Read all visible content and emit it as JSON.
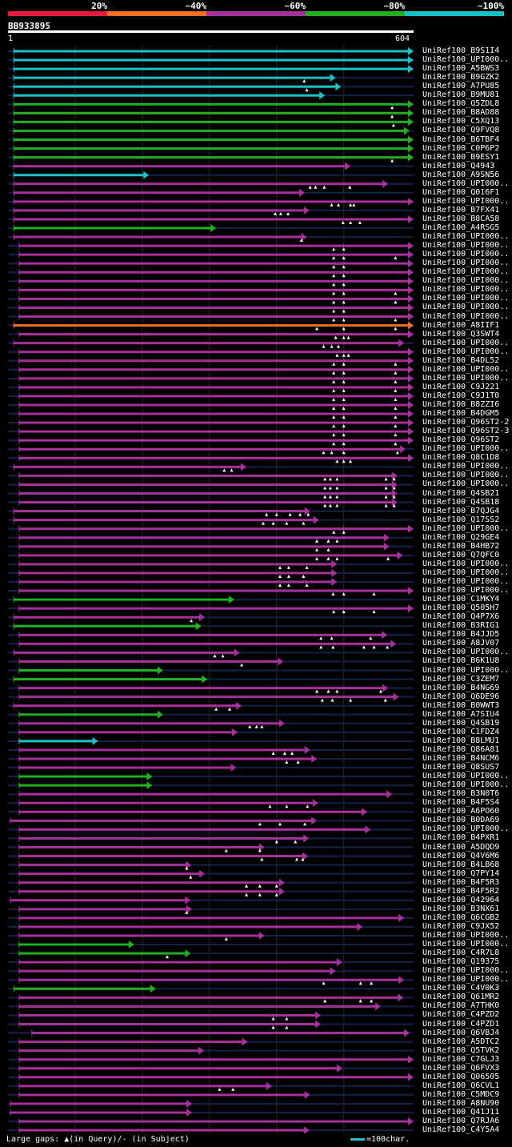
{
  "legend": {
    "labels": [
      "20%",
      "~40%",
      "~60%",
      "~80%",
      "~100%"
    ],
    "colors": [
      "#e8193a",
      "#f06f20",
      "#a8309e",
      "#20b020",
      "#19c1c8"
    ]
  },
  "query": {
    "id": "BB933895",
    "start": "1",
    "end": "604",
    "length": 604
  },
  "footer": {
    "text": "Large gaps: ▲(in Query)/- (in Subject)",
    "scale": "=100char."
  },
  "hits": [
    {
      "label": "UniRef100_B9S1I4",
      "c": 4,
      "s": 8,
      "e": 604,
      "m": []
    },
    {
      "label": "UniRef100_UPI000..",
      "c": 4,
      "s": 8,
      "e": 604,
      "m": []
    },
    {
      "label": "UniRef100_A5BWS3",
      "c": 4,
      "s": 8,
      "e": 604,
      "m": []
    },
    {
      "label": "UniRef100_B9GZK2",
      "c": 4,
      "s": 8,
      "e": 488,
      "m": [
        441
      ]
    },
    {
      "label": "UniRef100_A7PU85",
      "c": 4,
      "s": 8,
      "e": 496,
      "m": [
        445
      ]
    },
    {
      "label": "UniRef100_B9MU81",
      "c": 4,
      "s": 8,
      "e": 472,
      "m": []
    },
    {
      "label": "UniRef100_Q5ZDL8",
      "c": 3,
      "s": 8,
      "e": 604,
      "m": [
        572
      ]
    },
    {
      "label": "UniRef100_B8AD88",
      "c": 3,
      "s": 8,
      "e": 604,
      "m": [
        572
      ]
    },
    {
      "label": "UniRef100_C5XQ13",
      "c": 3,
      "s": 8,
      "e": 604,
      "m": [
        574
      ]
    },
    {
      "label": "UniRef100_Q9FVQ8",
      "c": 3,
      "s": 8,
      "e": 598,
      "m": []
    },
    {
      "label": "UniRef100_B6TBF4",
      "c": 3,
      "s": 8,
      "e": 604,
      "m": []
    },
    {
      "label": "UniRef100_C0P6P2",
      "c": 3,
      "s": 8,
      "e": 604,
      "m": []
    },
    {
      "label": "UniRef100_B9ESY1",
      "c": 3,
      "s": 8,
      "e": 604,
      "m": [
        572
      ]
    },
    {
      "label": "UniRef100_Q4943",
      "c": 2,
      "s": 8,
      "e": 510,
      "m": []
    },
    {
      "label": "UniRef100_A9SN56",
      "c": 4,
      "s": 8,
      "e": 210,
      "m": []
    },
    {
      "label": "UniRef100_UPI000..",
      "c": 2,
      "s": 8,
      "e": 566,
      "m": [
        450,
        458,
        471,
        509
      ]
    },
    {
      "label": "UniRef100_Q016F1",
      "c": 2,
      "s": 8,
      "e": 442,
      "m": []
    },
    {
      "label": "UniRef100_UPI000..",
      "c": 2,
      "s": 8,
      "e": 604,
      "m": [
        482,
        492,
        510,
        515
      ]
    },
    {
      "label": "UniRef100_B7FX41",
      "c": 2,
      "s": 8,
      "e": 449,
      "m": [
        398,
        406,
        417
      ]
    },
    {
      "label": "UniRef100_B8CA58",
      "c": 2,
      "s": 8,
      "e": 604,
      "m": [
        499,
        510,
        524
      ]
    },
    {
      "label": "UniRef100_A4RSG5",
      "c": 3,
      "s": 8,
      "e": 310,
      "m": []
    },
    {
      "label": "UniRef100_UPI000..",
      "c": 2,
      "s": 8,
      "e": 445,
      "m": [
        437
      ]
    },
    {
      "label": "UniRef100_UPI000..",
      "c": 2,
      "s": 16,
      "e": 604,
      "m": [
        485,
        500
      ]
    },
    {
      "label": "UniRef100_UPI000..",
      "c": 2,
      "s": 16,
      "e": 604,
      "m": [
        485,
        500,
        577
      ]
    },
    {
      "label": "UniRef100_UPI000..",
      "c": 2,
      "s": 16,
      "e": 604,
      "m": [
        485,
        500
      ]
    },
    {
      "label": "UniRef100_UPI000..",
      "c": 2,
      "s": 16,
      "e": 604,
      "m": [
        485,
        500
      ]
    },
    {
      "label": "UniRef100_UPI000..",
      "c": 2,
      "s": 16,
      "e": 604,
      "m": [
        485,
        500
      ]
    },
    {
      "label": "UniRef100_UPI000..",
      "c": 2,
      "s": 16,
      "e": 604,
      "m": [
        485,
        500,
        577
      ]
    },
    {
      "label": "UniRef100_UPI000..",
      "c": 2,
      "s": 16,
      "e": 604,
      "m": [
        485,
        500,
        577
      ]
    },
    {
      "label": "UniRef100_UPI000..",
      "c": 2,
      "s": 16,
      "e": 604,
      "m": [
        485,
        500
      ]
    },
    {
      "label": "UniRef100_UPI000..",
      "c": 2,
      "s": 16,
      "e": 604,
      "m": [
        485,
        500,
        577
      ]
    },
    {
      "label": "UniRef100_A8IIF1",
      "c": 1,
      "s": 8,
      "e": 604,
      "m": [
        460,
        500,
        577
      ]
    },
    {
      "label": "UniRef100_Q3SWT4",
      "c": 2,
      "s": 16,
      "e": 604,
      "m": [
        488,
        500,
        507
      ]
    },
    {
      "label": "UniRef100_UPI000..",
      "c": 2,
      "s": 8,
      "e": 590,
      "m": [
        470,
        482,
        492
      ]
    },
    {
      "label": "UniRef100_UPI000..",
      "c": 2,
      "s": 16,
      "e": 604,
      "m": [
        490,
        500,
        507
      ]
    },
    {
      "label": "UniRef100_B4DL52",
      "c": 2,
      "s": 16,
      "e": 604,
      "m": [
        485,
        500,
        577
      ]
    },
    {
      "label": "UniRef100_UPI000..",
      "c": 2,
      "s": 16,
      "e": 604,
      "m": [
        485,
        500,
        577
      ]
    },
    {
      "label": "UniRef100_UPI000..",
      "c": 2,
      "s": 16,
      "e": 604,
      "m": [
        485,
        500,
        577
      ]
    },
    {
      "label": "UniRef100_C9J221",
      "c": 2,
      "s": 16,
      "e": 604,
      "m": [
        485,
        500,
        577
      ]
    },
    {
      "label": "UniRef100_C9J1T0",
      "c": 2,
      "s": 16,
      "e": 604,
      "m": [
        485,
        500,
        577
      ]
    },
    {
      "label": "UniRef100_B8ZZI6",
      "c": 2,
      "s": 16,
      "e": 604,
      "m": [
        485,
        500,
        577
      ]
    },
    {
      "label": "UniRef100_B4DGM5",
      "c": 2,
      "s": 16,
      "e": 604,
      "m": [
        485,
        500,
        577
      ]
    },
    {
      "label": "UniRef100_Q96ST2-2",
      "c": 2,
      "s": 16,
      "e": 604,
      "m": [
        485,
        500,
        577
      ]
    },
    {
      "label": "UniRef100_Q96ST2-3",
      "c": 2,
      "s": 16,
      "e": 604,
      "m": [
        485,
        500,
        577
      ]
    },
    {
      "label": "UniRef100_Q96ST2",
      "c": 2,
      "s": 16,
      "e": 604,
      "m": [
        485,
        500,
        577
      ]
    },
    {
      "label": "UniRef100_UPI000..",
      "c": 2,
      "s": 16,
      "e": 592,
      "m": [
        470,
        482,
        500,
        580
      ]
    },
    {
      "label": "UniRef100_Q8C1D8",
      "c": 2,
      "s": 16,
      "e": 604,
      "m": [
        490,
        500,
        510
      ]
    },
    {
      "label": "UniRef100_UPI000..",
      "c": 2,
      "s": 8,
      "e": 355,
      "m": [
        322,
        333
      ]
    },
    {
      "label": "UniRef100_UPI000..",
      "c": 2,
      "s": 16,
      "e": 580,
      "m": [
        472,
        480,
        490,
        563,
        575
      ]
    },
    {
      "label": "UniRef100_UPI000..",
      "c": 2,
      "s": 16,
      "e": 580,
      "m": [
        472,
        480,
        490,
        563,
        575
      ]
    },
    {
      "label": "UniRef100_Q4SB21",
      "c": 2,
      "s": 16,
      "e": 580,
      "m": [
        472,
        480,
        490,
        563,
        575
      ]
    },
    {
      "label": "UniRef100_Q4SB18",
      "c": 2,
      "s": 16,
      "e": 580,
      "m": [
        472,
        480,
        490,
        563,
        575
      ]
    },
    {
      "label": "UniRef100_B7QJG4",
      "c": 2,
      "s": 8,
      "e": 450,
      "m": [
        385,
        400,
        420,
        435,
        447
      ]
    },
    {
      "label": "UniRef100_Q17SS2",
      "c": 2,
      "s": 8,
      "e": 463,
      "m": [
        380,
        395,
        415,
        440
      ]
    },
    {
      "label": "UniRef100_UPI000..",
      "c": 2,
      "s": 16,
      "e": 604,
      "m": [
        485,
        500
      ]
    },
    {
      "label": "UniRef100_Q29GE4",
      "c": 2,
      "s": 16,
      "e": 568,
      "m": [
        460,
        477,
        490
      ]
    },
    {
      "label": "UniRef100_B4HB72",
      "c": 2,
      "s": 16,
      "e": 568,
      "m": [
        460,
        477
      ]
    },
    {
      "label": "UniRef100_Q7QFC0",
      "c": 2,
      "s": 16,
      "e": 588,
      "m": [
        460,
        477,
        490,
        566
      ]
    },
    {
      "label": "UniRef100_UPI000..",
      "c": 2,
      "s": 16,
      "e": 490,
      "m": [
        405,
        418,
        445
      ]
    },
    {
      "label": "UniRef100_UPI000..",
      "c": 2,
      "s": 16,
      "e": 490,
      "m": [
        405,
        418,
        440
      ]
    },
    {
      "label": "UniRef100_UPI000..",
      "c": 2,
      "s": 16,
      "e": 490,
      "m": [
        405,
        418,
        445
      ]
    },
    {
      "label": "UniRef100_UPI000..",
      "c": 2,
      "s": 16,
      "e": 604,
      "m": [
        484,
        500,
        545
      ]
    },
    {
      "label": "UniRef100_C1MKY4",
      "c": 3,
      "s": 8,
      "e": 337,
      "m": []
    },
    {
      "label": "UniRef100_Q505H7",
      "c": 2,
      "s": 16,
      "e": 604,
      "m": [
        485,
        500,
        545
      ]
    },
    {
      "label": "UniRef100_Q4P7X6",
      "c": 2,
      "s": 8,
      "e": 293,
      "m": [
        273
      ]
    },
    {
      "label": "UniRef100_B3RIG1",
      "c": 3,
      "s": 8,
      "e": 288,
      "m": []
    },
    {
      "label": "UniRef100_B4JJD5",
      "c": 2,
      "s": 16,
      "e": 565,
      "m": [
        466,
        482,
        540
      ]
    },
    {
      "label": "UniRef100_A8JV07",
      "c": 2,
      "s": 16,
      "e": 578,
      "m": [
        466,
        484,
        530,
        545,
        565
      ]
    },
    {
      "label": "UniRef100_UPI000..",
      "c": 2,
      "s": 8,
      "e": 345,
      "m": [
        308,
        320
      ]
    },
    {
      "label": "UniRef100_B6K1U8",
      "c": 2,
      "s": 16,
      "e": 410,
      "m": [
        348
      ]
    },
    {
      "label": "UniRef100_UPI000..",
      "c": 3,
      "s": 16,
      "e": 231,
      "m": []
    },
    {
      "label": "UniRef100_C3ZEM7",
      "c": 3,
      "s": 8,
      "e": 297,
      "m": []
    },
    {
      "label": "UniRef100_B4NG69",
      "c": 2,
      "s": 16,
      "e": 566,
      "m": [
        460,
        477,
        490,
        555
      ]
    },
    {
      "label": "UniRef100_Q6DE96",
      "c": 2,
      "s": 16,
      "e": 582,
      "m": [
        468,
        483,
        510,
        562
      ]
    },
    {
      "label": "UniRef100_B0WWT3",
      "c": 2,
      "s": 8,
      "e": 348,
      "m": [
        310,
        330
      ]
    },
    {
      "label": "UniRef100_A7SIU4",
      "c": 3,
      "s": 16,
      "e": 231,
      "m": []
    },
    {
      "label": "UniRef100_Q4SB19",
      "c": 2,
      "s": 16,
      "e": 412,
      "m": [
        360,
        370,
        378
      ]
    },
    {
      "label": "UniRef100_C1FDZ4",
      "c": 2,
      "s": 16,
      "e": 342,
      "m": []
    },
    {
      "label": "UniRef100_B8LMU1",
      "c": 4,
      "s": 16,
      "e": 134,
      "m": []
    },
    {
      "label": "UniRef100_Q86A81",
      "c": 2,
      "s": 16,
      "e": 450,
      "m": [
        395,
        412,
        423
      ]
    },
    {
      "label": "UniRef100_B4NCM6",
      "c": 2,
      "s": 16,
      "e": 460,
      "m": [
        415,
        432
      ]
    },
    {
      "label": "UniRef100_Q8SUS7",
      "c": 2,
      "s": 16,
      "e": 340,
      "m": []
    },
    {
      "label": "UniRef100_UPI000..",
      "c": 3,
      "s": 16,
      "e": 215,
      "m": []
    },
    {
      "label": "UniRef100_UPI000..",
      "c": 3,
      "s": 16,
      "e": 215,
      "m": []
    },
    {
      "label": "UniRef100_B3N0T6",
      "c": 2,
      "s": 16,
      "e": 572,
      "m": []
    },
    {
      "label": "UniRef100_B4F5S4",
      "c": 2,
      "s": 16,
      "e": 462,
      "m": [
        390,
        415,
        446
      ]
    },
    {
      "label": "UniRef100_A6PO60",
      "c": 2,
      "s": 16,
      "e": 535,
      "m": []
    },
    {
      "label": "UniRef100_B0DA69",
      "c": 2,
      "s": 3,
      "e": 460,
      "m": [
        375,
        405,
        442
      ]
    },
    {
      "label": "UniRef100_UPI000..",
      "c": 2,
      "s": 16,
      "e": 540,
      "m": []
    },
    {
      "label": "UniRef100_B4PXR1",
      "c": 2,
      "s": 16,
      "e": 448,
      "m": [
        400,
        428
      ]
    },
    {
      "label": "UniRef100_A5DQD9",
      "c": 2,
      "s": 16,
      "e": 382,
      "m": [
        325,
        375
      ]
    },
    {
      "label": "UniRef100_Q4V6M6",
      "c": 2,
      "s": 16,
      "e": 447,
      "m": [
        378,
        430,
        439
      ]
    },
    {
      "label": "UniRef100_B4LB68",
      "c": 2,
      "s": 16,
      "e": 273,
      "m": [
        266
      ]
    },
    {
      "label": "UniRef100_Q7PY14",
      "c": 2,
      "s": 16,
      "e": 293,
      "m": [
        272
      ]
    },
    {
      "label": "UniRef100_B4F5R3",
      "c": 2,
      "s": 16,
      "e": 412,
      "m": [
        355,
        375,
        400
      ]
    },
    {
      "label": "UniRef100_B4F5R2",
      "c": 2,
      "s": 16,
      "e": 412,
      "m": [
        355,
        375,
        400
      ]
    },
    {
      "label": "UniRef100_Q42964",
      "c": 2,
      "s": 3,
      "e": 272,
      "m": []
    },
    {
      "label": "UniRef100_B3NX61",
      "c": 2,
      "s": 16,
      "e": 274,
      "m": [
        266
      ]
    },
    {
      "label": "UniRef100_Q6CGB2",
      "c": 2,
      "s": 16,
      "e": 590,
      "m": []
    },
    {
      "label": "UniRef100_C9JX52",
      "c": 2,
      "s": 16,
      "e": 528,
      "m": []
    },
    {
      "label": "UniRef100_UPI000..",
      "c": 2,
      "s": 16,
      "e": 382,
      "m": [
        325
      ]
    },
    {
      "label": "UniRef100_UPI000..",
      "c": 3,
      "s": 16,
      "e": 188,
      "m": []
    },
    {
      "label": "UniRef100_C4R7L8",
      "c": 3,
      "s": 16,
      "e": 272,
      "m": [
        237
      ]
    },
    {
      "label": "UniRef100_Q19375",
      "c": 2,
      "s": 16,
      "e": 498,
      "m": []
    },
    {
      "label": "UniRef100_UPI000..",
      "c": 2,
      "s": 16,
      "e": 488,
      "m": []
    },
    {
      "label": "UniRef100_UPI000..",
      "c": 2,
      "s": 16,
      "e": 590,
      "m": [
        470,
        525,
        541
      ]
    },
    {
      "label": "UniRef100_C4V0K3",
      "c": 3,
      "s": 8,
      "e": 220,
      "m": []
    },
    {
      "label": "UniRef100_Q61MR2",
      "c": 2,
      "s": 16,
      "e": 589,
      "m": [
        472,
        525,
        541
      ]
    },
    {
      "label": "UniRef100_A7THK0",
      "c": 2,
      "s": 16,
      "e": 555,
      "m": []
    },
    {
      "label": "UniRef100_C4PZD2",
      "c": 2,
      "s": 16,
      "e": 466,
      "m": [
        395,
        415
      ]
    },
    {
      "label": "UniRef100_C4PZD1",
      "c": 2,
      "s": 16,
      "e": 466,
      "m": [
        395,
        415
      ]
    },
    {
      "label": "UniRef100_Q6VBJ4",
      "c": 2,
      "s": 35,
      "e": 598,
      "m": []
    },
    {
      "label": "UniRef100_A5DTC2",
      "c": 2,
      "s": 16,
      "e": 357,
      "m": []
    },
    {
      "label": "UniRef100_Q5TVK2",
      "c": 2,
      "s": 16,
      "e": 292,
      "m": []
    },
    {
      "label": "UniRef100_C7GLJ3",
      "c": 2,
      "s": 16,
      "e": 604,
      "m": []
    },
    {
      "label": "UniRef100_Q6FVX3",
      "c": 2,
      "s": 16,
      "e": 498,
      "m": []
    },
    {
      "label": "UniRef100_Q06505",
      "c": 2,
      "s": 16,
      "e": 604,
      "m": []
    },
    {
      "label": "UniRef100_Q6CVL1",
      "c": 2,
      "s": 16,
      "e": 393,
      "m": [
        315,
        335
      ]
    },
    {
      "label": "UniRef100_C5MDC9",
      "c": 2,
      "s": 16,
      "e": 450,
      "m": []
    },
    {
      "label": "UniRef100_A8NU90",
      "c": 2,
      "s": 3,
      "e": 274,
      "m": []
    },
    {
      "label": "UniRef100_Q41J11",
      "c": 2,
      "s": 3,
      "e": 274,
      "m": []
    },
    {
      "label": "UniRef100_Q7RJA6",
      "c": 2,
      "s": 16,
      "e": 604,
      "m": []
    },
    {
      "label": "UniRef100_C4Y5A4",
      "c": 2,
      "s": 16,
      "e": 449,
      "m": []
    }
  ]
}
